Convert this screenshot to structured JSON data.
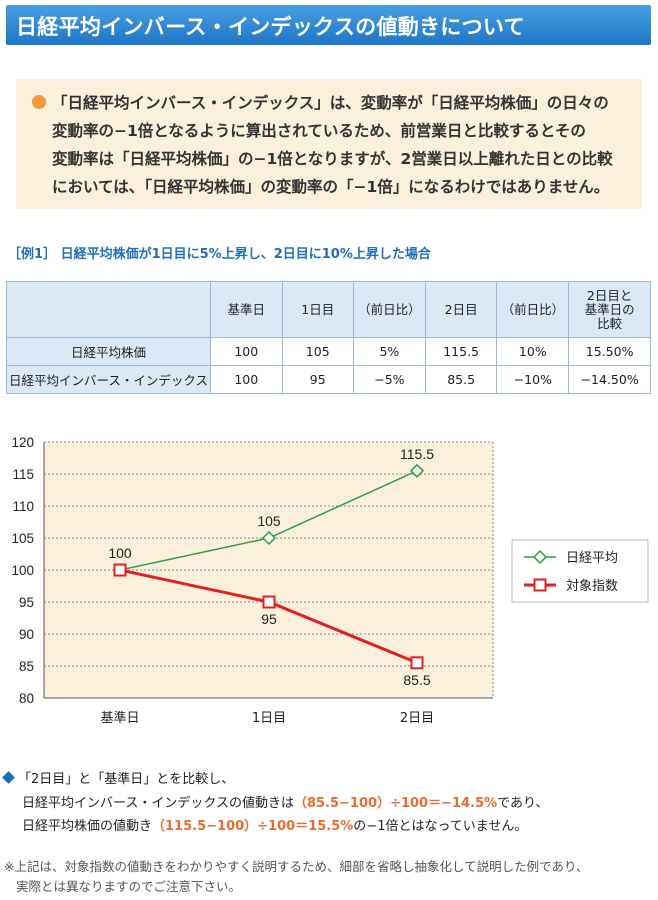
{
  "title": "日経平均インバース・インデックスの値動きについて",
  "notice": {
    "lines": [
      "「日経平均インバース・インデックス」は、変動率が「日経平均株価」の日々の",
      "変動率の−1倍となるように算出されているため、前営業日と比較するとその",
      "変動率は「日経平均株価」の−1倍となりますが、2営業日以上離れた日との比較",
      "においては、「日経平均株価」の変動率の「−1倍」になるわけではありません。"
    ]
  },
  "example_heading": "［例1］ 日経平均株価が1日目に5%上昇し、2日目に10%上昇した場合",
  "table": {
    "headers": [
      "",
      "基準日",
      "1日目",
      "（前日比）",
      "2日目",
      "（前日比）",
      "2日目と基準日の比較"
    ],
    "header_last_lines": [
      "2日目と",
      "基準日の",
      "比較"
    ],
    "rows": [
      [
        "日経平均株価",
        "100",
        "105",
        "5%",
        "115.5",
        "10%",
        "15.50%"
      ],
      [
        "日経平均インバース・インデックス",
        "100",
        "95",
        "−5%",
        "85.5",
        "−10%",
        "−14.50%"
      ]
    ]
  },
  "chart_data": {
    "type": "line",
    "categories": [
      "基準日",
      "1日目",
      "2日目"
    ],
    "series": [
      {
        "name": "日経平均",
        "values": [
          100,
          105,
          115.5
        ],
        "color": "#2e9e3e",
        "marker": "diamond"
      },
      {
        "name": "対象指数",
        "values": [
          100,
          95,
          85.5
        ],
        "color": "#e02020",
        "marker": "square"
      }
    ],
    "data_labels": [
      [
        "100",
        "105",
        "115.5"
      ],
      [
        "",
        "95",
        "85.5"
      ]
    ],
    "ylim": [
      80,
      120
    ],
    "yticks": [
      "80",
      "85",
      "90",
      "95",
      "100",
      "105",
      "110",
      "115",
      "120"
    ],
    "grid": true,
    "legend": "right",
    "plot_background": "#fbf0dc"
  },
  "notes": {
    "intro": "「2日目」と「基準日」とを比較し、",
    "line1_pre": "日経平均インバース・インデックスの値動きは",
    "line1_formula": "（85.5−100）÷100＝−14.5%",
    "line1_post": "であり、",
    "line2_pre": "日経平均株価の値動き",
    "line2_formula": "（115.5−100）÷100＝15.5%",
    "line2_post": "の−1倍とはなっていません。"
  },
  "footnote": {
    "line1": "※上記は、対象指数の値動きをわかりやすく説明するため、細部を省略し抽象化して説明した例であり、",
    "line2": "実際とは異なりますのでご注意下さい。"
  }
}
